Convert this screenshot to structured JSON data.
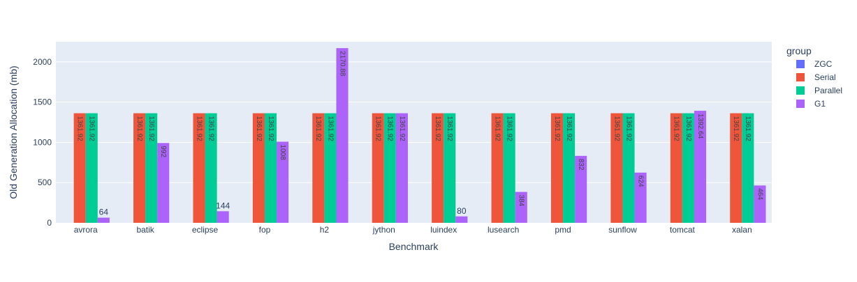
{
  "chart_data": {
    "type": "bar",
    "title": "",
    "xlabel": "Benchmark",
    "ylabel": "Old Generation Allocation (mb)",
    "ylim": [
      0,
      2250
    ],
    "yticks": [
      0,
      500,
      1000,
      1500,
      2000
    ],
    "grid": true,
    "legend_title": "group",
    "legend_position": "right",
    "categories": [
      "avrora",
      "batik",
      "eclipse",
      "fop",
      "h2",
      "jython",
      "luindex",
      "lusearch",
      "pmd",
      "sunflow",
      "tomcat",
      "xalan"
    ],
    "series": [
      {
        "name": "ZGC",
        "color": "#636efa",
        "values": [
          null,
          null,
          null,
          null,
          null,
          null,
          null,
          null,
          null,
          null,
          null,
          null
        ],
        "labels": [
          "",
          "",
          "",
          "",
          "",
          "",
          "",
          "",
          "",
          "",
          "",
          ""
        ]
      },
      {
        "name": "Serial",
        "color": "#ef553b",
        "values": [
          1361.92,
          1361.92,
          1361.92,
          1361.92,
          1361.92,
          1361.92,
          1361.92,
          1361.92,
          1361.92,
          1361.92,
          1361.92,
          1361.92
        ],
        "labels": [
          "1361.92",
          "1361.92",
          "1361.92",
          "1361.92",
          "1361.92",
          "1361.92",
          "1361.92",
          "1361.92",
          "1361.92",
          "1361.92",
          "1361.92",
          "1361.92"
        ]
      },
      {
        "name": "Parallel",
        "color": "#00cc96",
        "values": [
          1361.92,
          1361.92,
          1361.92,
          1361.92,
          1361.92,
          1361.92,
          1361.92,
          1361.92,
          1361.92,
          1361.92,
          1361.92,
          1361.92
        ],
        "labels": [
          "1361.92",
          "1361.92",
          "1361.92",
          "1361.92",
          "1361.92",
          "1361.92",
          "1361.92",
          "1361.92",
          "1361.92",
          "1361.92",
          "1361.92",
          "1361.92"
        ]
      },
      {
        "name": "G1",
        "color": "#ab63fa",
        "values": [
          64,
          992,
          144,
          1008,
          2170.88,
          1361.92,
          80,
          384,
          832,
          624,
          1392.64,
          464
        ],
        "labels": [
          "64",
          "992",
          "144",
          "1008",
          "2170.88",
          "1361.92",
          "80",
          "384",
          "832",
          "624",
          "1392.64",
          "464"
        ]
      }
    ]
  }
}
